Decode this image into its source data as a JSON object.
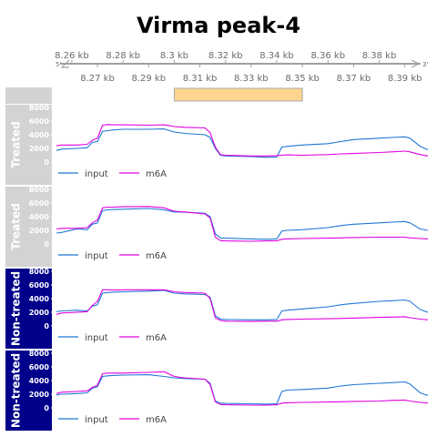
{
  "chart_data": {
    "type": "line",
    "title": "Virma peak-4",
    "genome_axis": {
      "unit": "kb",
      "range": [
        8.254,
        8.399
      ],
      "top_ticks": [
        "8.26 kb",
        "8.28 kb",
        "8.3 kb",
        "8.32 kb",
        "8.34 kb",
        "8.36 kb",
        "8.38 kb"
      ],
      "top_tick_values": [
        8.26,
        8.28,
        8.3,
        8.32,
        8.34,
        8.36,
        8.38
      ],
      "bottom_ticks": [
        "8.27 kb",
        "8.29 kb",
        "8.31 kb",
        "8.33 kb",
        "8.35 kb",
        "8.37 kb",
        "8.39 kb"
      ],
      "bottom_tick_values": [
        8.27,
        8.29,
        8.31,
        8.33,
        8.35,
        8.37,
        8.39
      ],
      "strand_start": "5'",
      "strand_end": "3'"
    },
    "peak_region": {
      "start": 8.3,
      "end": 8.35,
      "color": "#ffd590"
    },
    "x": [
      8.254,
      8.256,
      8.262,
      8.266,
      8.268,
      8.27,
      8.272,
      8.274,
      8.276,
      8.28,
      8.29,
      8.296,
      8.3,
      8.304,
      8.312,
      8.314,
      8.316,
      8.318,
      8.32,
      8.33,
      8.336,
      8.34,
      8.342,
      8.344,
      8.35,
      8.36,
      8.365,
      8.37,
      8.38,
      8.385,
      8.39,
      8.392,
      8.396,
      8.399
    ],
    "ylim": [
      0,
      8000
    ],
    "yticks": [
      0,
      2000,
      4000,
      6000,
      8000
    ],
    "ytick_labels": [
      "0",
      "2000",
      "4000",
      "6000",
      "8000"
    ],
    "legend": [
      "input",
      "m6A"
    ],
    "colors": {
      "input": "#1f77d4",
      "m6A": "#e000e0"
    },
    "panels": [
      {
        "label": "Treated",
        "label_bg": "#d3d3d3",
        "series": [
          {
            "name": "input",
            "values": [
              1700,
              1900,
              2000,
              2100,
              2900,
              3000,
              4500,
              4600,
              4700,
              4800,
              4800,
              4850,
              4400,
              4200,
              4000,
              3600,
              2000,
              1000,
              900,
              800,
              700,
              750,
              2200,
              2300,
              2500,
              2700,
              3000,
              3300,
              3500,
              3600,
              3700,
              3500,
              2300,
              1800
            ]
          },
          {
            "name": "m6A",
            "values": [
              2400,
              2500,
              2500,
              2600,
              3200,
              3500,
              5400,
              5500,
              5450,
              5450,
              5400,
              5450,
              5200,
              5100,
              5000,
              4300,
              2200,
              1100,
              1000,
              900,
              900,
              950,
              1000,
              1050,
              1000,
              1100,
              1200,
              1250,
              1400,
              1500,
              1600,
              1500,
              1100,
              900
            ]
          }
        ]
      },
      {
        "label": "Treated",
        "label_bg": "#d3d3d3",
        "series": [
          {
            "name": "input",
            "values": [
              1600,
              1700,
              2200,
              2100,
              2900,
              3100,
              4900,
              5000,
              5050,
              5100,
              5200,
              5000,
              4700,
              4650,
              4500,
              4000,
              1500,
              900,
              850,
              750,
              700,
              750,
              1900,
              2000,
              2100,
              2400,
              2700,
              2900,
              3100,
              3200,
              3300,
              3100,
              2200,
              2000
            ]
          },
          {
            "name": "m6A",
            "values": [
              2200,
              2300,
              2300,
              2400,
              3100,
              3500,
              5300,
              5400,
              5400,
              5450,
              5500,
              5300,
              4800,
              4700,
              4400,
              3800,
              1000,
              500,
              450,
              400,
              450,
              450,
              700,
              750,
              800,
              850,
              900,
              950,
              1000,
              1000,
              1000,
              900,
              800,
              750
            ]
          }
        ]
      },
      {
        "label": "Non-treated",
        "label_bg": "#00008b",
        "series": [
          {
            "name": "input",
            "values": [
              2100,
              2200,
              2300,
              2200,
              2900,
              3100,
              4800,
              4900,
              4950,
              5000,
              5100,
              5200,
              4800,
              4700,
              4600,
              4200,
              1500,
              1000,
              950,
              900,
              900,
              950,
              2200,
              2300,
              2500,
              2800,
              3100,
              3300,
              3600,
              3700,
              3800,
              3600,
              2400,
              2000
            ]
          },
          {
            "name": "m6A",
            "values": [
              1700,
              1900,
              2000,
              2100,
              3000,
              3600,
              5300,
              5300,
              5250,
              5300,
              5300,
              5300,
              5000,
              4900,
              4800,
              4000,
              1200,
              800,
              700,
              650,
              700,
              700,
              900,
              950,
              1000,
              1050,
              1100,
              1150,
              1250,
              1300,
              1350,
              1200,
              1000,
              900
            ]
          }
        ]
      },
      {
        "label": "Non-treated",
        "label_bg": "#00008b",
        "series": [
          {
            "name": "input",
            "values": [
              1900,
              2000,
              2100,
              2200,
              2900,
              3100,
              4600,
              4700,
              4750,
              4800,
              4850,
              4600,
              4400,
              4300,
              4200,
              3600,
              1000,
              700,
              650,
              600,
              550,
              600,
              2400,
              2600,
              2700,
              2900,
              3200,
              3400,
              3600,
              3700,
              3800,
              3500,
              2200,
              1800
            ]
          },
          {
            "name": "m6A",
            "values": [
              2100,
              2300,
              2400,
              2500,
              3000,
              3300,
              5000,
              5100,
              5100,
              5100,
              5200,
              5300,
              4600,
              4400,
              4200,
              3400,
              900,
              500,
              450,
              400,
              400,
              450,
              700,
              750,
              800,
              850,
              900,
              950,
              1000,
              1100,
              1150,
              1000,
              800,
              700
            ]
          }
        ]
      }
    ]
  }
}
